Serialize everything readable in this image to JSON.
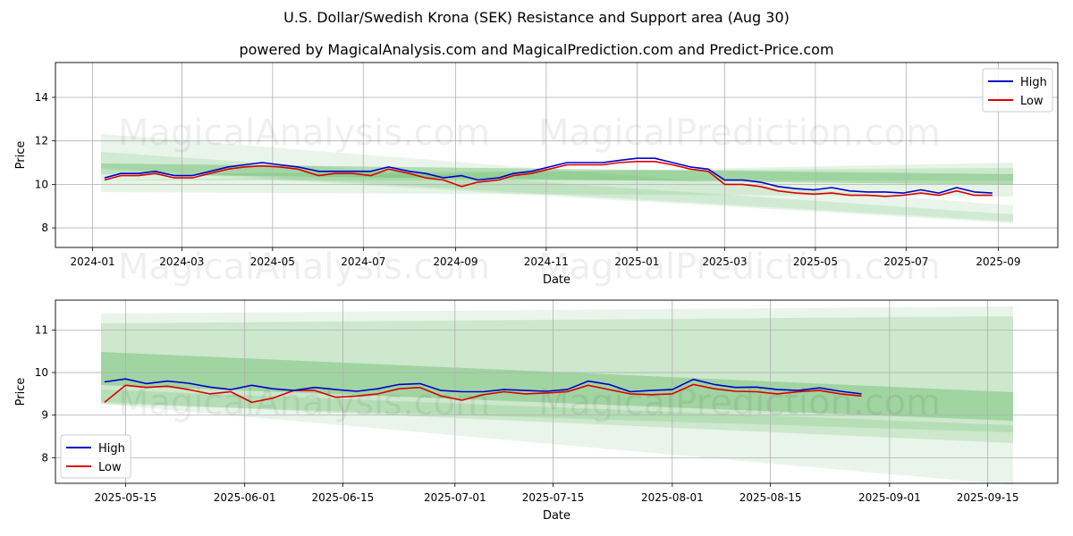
{
  "title": "U.S. Dollar/Swedish Krona (SEK) Resistance and Support area (Aug 30)",
  "subtitle": "powered by MagicalAnalysis.com and MagicalPrediction.com and Predict-Price.com",
  "watermarks": [
    "MagicalAnalysis.com",
    "MagicalPrediction.com"
  ],
  "colors": {
    "high": "#0000cc",
    "low": "#dd0000",
    "band": "#4caf50"
  },
  "chart_data": [
    {
      "type": "line",
      "xlabel": "Date",
      "ylabel": "Price",
      "xlim": [
        "2023-12-07",
        "2025-10-11"
      ],
      "ylim": [
        7.1,
        15.6
      ],
      "xticks": [
        "2024-01",
        "2024-03",
        "2024-05",
        "2024-07",
        "2024-09",
        "2024-11",
        "2025-01",
        "2025-03",
        "2025-05",
        "2025-07",
        "2025-09"
      ],
      "yticks": [
        8,
        10,
        12,
        14
      ],
      "grid": true,
      "legend": "top-right",
      "series": [
        {
          "name": "High",
          "dates": [
            "2024-01-09",
            "2024-01-20",
            "2024-02-01",
            "2024-02-12",
            "2024-02-25",
            "2024-03-08",
            "2024-03-20",
            "2024-04-01",
            "2024-04-12",
            "2024-04-24",
            "2024-05-06",
            "2024-05-18",
            "2024-06-01",
            "2024-06-12",
            "2024-06-24",
            "2024-07-06",
            "2024-07-18",
            "2024-08-01",
            "2024-08-12",
            "2024-08-24",
            "2024-09-05",
            "2024-09-16",
            "2024-09-30",
            "2024-10-10",
            "2024-10-22",
            "2024-11-03",
            "2024-11-15",
            "2024-11-27",
            "2024-12-09",
            "2024-12-20",
            "2025-01-01",
            "2025-01-13",
            "2025-01-25",
            "2025-02-06",
            "2025-02-18",
            "2025-03-01",
            "2025-03-13",
            "2025-03-25",
            "2025-04-06",
            "2025-04-18",
            "2025-04-30",
            "2025-05-12",
            "2025-05-24",
            "2025-06-05",
            "2025-06-17",
            "2025-06-29",
            "2025-07-11",
            "2025-07-23",
            "2025-08-04",
            "2025-08-16",
            "2025-08-28"
          ],
          "values": [
            10.3,
            10.5,
            10.5,
            10.6,
            10.4,
            10.4,
            10.6,
            10.8,
            10.9,
            11.0,
            10.9,
            10.8,
            10.6,
            10.6,
            10.6,
            10.6,
            10.8,
            10.6,
            10.5,
            10.3,
            10.4,
            10.2,
            10.3,
            10.5,
            10.6,
            10.8,
            11.0,
            11.0,
            11.0,
            11.1,
            11.2,
            11.2,
            11.0,
            10.8,
            10.7,
            10.2,
            10.2,
            10.1,
            9.9,
            9.8,
            9.75,
            9.85,
            9.7,
            9.65,
            9.65,
            9.6,
            9.75,
            9.6,
            9.85,
            9.65,
            9.6
          ]
        },
        {
          "name": "Low",
          "dates": [
            "2024-01-09",
            "2024-01-20",
            "2024-02-01",
            "2024-02-12",
            "2024-02-25",
            "2024-03-08",
            "2024-03-20",
            "2024-04-01",
            "2024-04-12",
            "2024-04-24",
            "2024-05-06",
            "2024-05-18",
            "2024-06-01",
            "2024-06-12",
            "2024-06-24",
            "2024-07-06",
            "2024-07-18",
            "2024-08-01",
            "2024-08-12",
            "2024-08-24",
            "2024-09-05",
            "2024-09-16",
            "2024-09-30",
            "2024-10-10",
            "2024-10-22",
            "2024-11-03",
            "2024-11-15",
            "2024-11-27",
            "2024-12-09",
            "2024-12-20",
            "2025-01-01",
            "2025-01-13",
            "2025-01-25",
            "2025-02-06",
            "2025-02-18",
            "2025-03-01",
            "2025-03-13",
            "2025-03-25",
            "2025-04-06",
            "2025-04-18",
            "2025-04-30",
            "2025-05-12",
            "2025-05-24",
            "2025-06-05",
            "2025-06-17",
            "2025-06-29",
            "2025-07-11",
            "2025-07-23",
            "2025-08-04",
            "2025-08-16",
            "2025-08-28"
          ],
          "values": [
            10.2,
            10.4,
            10.4,
            10.5,
            10.3,
            10.3,
            10.5,
            10.7,
            10.8,
            10.85,
            10.8,
            10.7,
            10.4,
            10.5,
            10.5,
            10.4,
            10.7,
            10.5,
            10.3,
            10.2,
            9.9,
            10.1,
            10.2,
            10.4,
            10.5,
            10.7,
            10.9,
            10.9,
            10.9,
            11.0,
            11.05,
            11.05,
            10.9,
            10.7,
            10.6,
            10.0,
            10.0,
            9.9,
            9.7,
            9.6,
            9.55,
            9.6,
            9.5,
            9.5,
            9.45,
            9.5,
            9.6,
            9.5,
            9.7,
            9.5,
            9.5
          ]
        }
      ]
    },
    {
      "type": "line",
      "xlabel": "Date",
      "ylabel": "Price",
      "xlim": [
        "2025-05-05",
        "2025-09-25"
      ],
      "ylim": [
        7.4,
        11.7
      ],
      "xticks": [
        "2025-05-15",
        "2025-06-01",
        "2025-06-15",
        "2025-07-01",
        "2025-07-15",
        "2025-08-01",
        "2025-08-15",
        "2025-09-01",
        "2025-09-15"
      ],
      "yticks": [
        8,
        9,
        10,
        11
      ],
      "grid": true,
      "legend": "bottom-left",
      "series": [
        {
          "name": "High",
          "dates": [
            "2025-05-12",
            "2025-05-15",
            "2025-05-18",
            "2025-05-21",
            "2025-05-24",
            "2025-05-27",
            "2025-05-30",
            "2025-06-02",
            "2025-06-05",
            "2025-06-08",
            "2025-06-11",
            "2025-06-14",
            "2025-06-17",
            "2025-06-20",
            "2025-06-23",
            "2025-06-26",
            "2025-06-29",
            "2025-07-02",
            "2025-07-05",
            "2025-07-08",
            "2025-07-11",
            "2025-07-14",
            "2025-07-17",
            "2025-07-20",
            "2025-07-23",
            "2025-07-26",
            "2025-07-29",
            "2025-08-01",
            "2025-08-04",
            "2025-08-07",
            "2025-08-10",
            "2025-08-13",
            "2025-08-16",
            "2025-08-19",
            "2025-08-22",
            "2025-08-25",
            "2025-08-28"
          ],
          "values": [
            9.78,
            9.85,
            9.74,
            9.8,
            9.75,
            9.66,
            9.6,
            9.7,
            9.62,
            9.58,
            9.65,
            9.6,
            9.56,
            9.62,
            9.72,
            9.74,
            9.58,
            9.55,
            9.55,
            9.6,
            9.58,
            9.56,
            9.6,
            9.8,
            9.72,
            9.55,
            9.58,
            9.6,
            9.84,
            9.72,
            9.65,
            9.66,
            9.6,
            9.58,
            9.64,
            9.56,
            9.5
          ]
        },
        {
          "name": "Low",
          "dates": [
            "2025-05-12",
            "2025-05-15",
            "2025-05-18",
            "2025-05-21",
            "2025-05-24",
            "2025-05-27",
            "2025-05-30",
            "2025-06-02",
            "2025-06-05",
            "2025-06-08",
            "2025-06-11",
            "2025-06-14",
            "2025-06-17",
            "2025-06-20",
            "2025-06-23",
            "2025-06-26",
            "2025-06-29",
            "2025-07-02",
            "2025-07-05",
            "2025-07-08",
            "2025-07-11",
            "2025-07-14",
            "2025-07-17",
            "2025-07-20",
            "2025-07-23",
            "2025-07-26",
            "2025-07-29",
            "2025-08-01",
            "2025-08-04",
            "2025-08-07",
            "2025-08-10",
            "2025-08-13",
            "2025-08-16",
            "2025-08-19",
            "2025-08-22",
            "2025-08-25",
            "2025-08-28"
          ],
          "values": [
            9.3,
            9.7,
            9.65,
            9.68,
            9.6,
            9.5,
            9.55,
            9.3,
            9.4,
            9.58,
            9.58,
            9.42,
            9.45,
            9.5,
            9.62,
            9.65,
            9.45,
            9.35,
            9.48,
            9.55,
            9.5,
            9.52,
            9.55,
            9.7,
            9.6,
            9.5,
            9.48,
            9.5,
            9.72,
            9.62,
            9.56,
            9.55,
            9.5,
            9.55,
            9.58,
            9.5,
            9.45
          ]
        }
      ]
    }
  ]
}
